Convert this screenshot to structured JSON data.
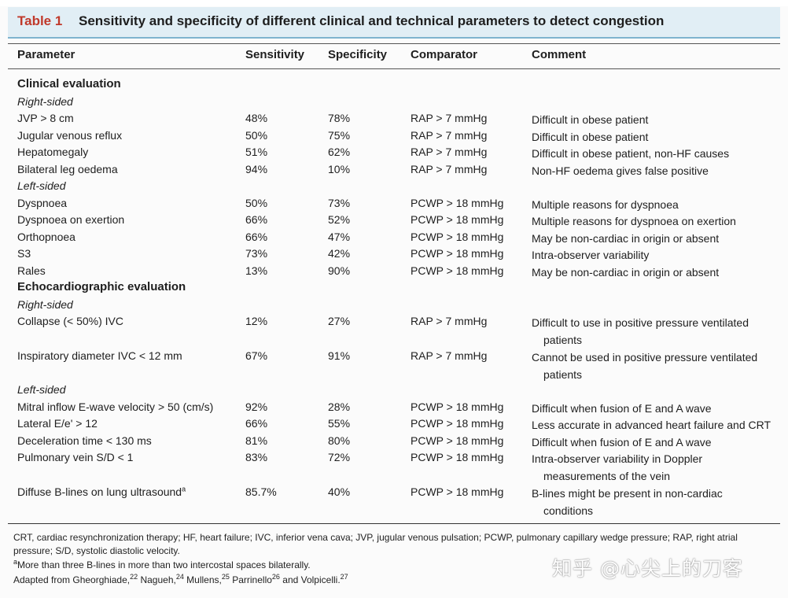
{
  "table": {
    "label": "Table 1",
    "title": "Sensitivity and specificity of different clinical and technical parameters to detect congestion",
    "headers": [
      "Parameter",
      "Sensitivity",
      "Specificity",
      "Comparator",
      "Comment"
    ],
    "sections": [
      {
        "title": "Clinical evaluation",
        "groups": [
          {
            "label": "Right-sided",
            "rows": [
              {
                "parameter": "JVP > 8 cm",
                "sensitivity": "48%",
                "specificity": "78%",
                "comparator": "RAP > 7 mmHg",
                "comment": [
                  "Difficult in obese patient"
                ]
              },
              {
                "parameter": "Jugular venous reflux",
                "sensitivity": "50%",
                "specificity": "75%",
                "comparator": "RAP > 7 mmHg",
                "comment": [
                  "Difficult in obese patient"
                ]
              },
              {
                "parameter": "Hepatomegaly",
                "sensitivity": "51%",
                "specificity": "62%",
                "comparator": "RAP > 7 mmHg",
                "comment": [
                  "Difficult in obese patient, non-HF causes"
                ]
              },
              {
                "parameter": "Bilateral leg oedema",
                "sensitivity": "94%",
                "specificity": "10%",
                "comparator": "RAP > 7 mmHg",
                "comment": [
                  "Non-HF oedema gives false positive"
                ]
              }
            ]
          },
          {
            "label": "Left-sided",
            "rows": [
              {
                "parameter": "Dyspnoea",
                "sensitivity": "50%",
                "specificity": "73%",
                "comparator": "PCWP > 18 mmHg",
                "comment": [
                  "Multiple reasons for dyspnoea"
                ]
              },
              {
                "parameter": "Dyspnoea on exertion",
                "sensitivity": "66%",
                "specificity": "52%",
                "comparator": "PCWP > 18 mmHg",
                "comment": [
                  "Multiple reasons for dyspnoea on exertion"
                ]
              },
              {
                "parameter": "Orthopnoea",
                "sensitivity": "66%",
                "specificity": "47%",
                "comparator": "PCWP > 18 mmHg",
                "comment": [
                  "May be non-cardiac in origin or absent"
                ]
              },
              {
                "parameter": "S3",
                "sensitivity": "73%",
                "specificity": "42%",
                "comparator": "PCWP > 18 mmHg",
                "comment": [
                  "Intra-observer variability"
                ]
              },
              {
                "parameter": "Rales",
                "sensitivity": "13%",
                "specificity": "90%",
                "comparator": "PCWP > 18 mmHg",
                "comment": [
                  "May be non-cardiac in origin or absent"
                ]
              }
            ]
          }
        ]
      },
      {
        "title": "Echocardiographic evaluation",
        "groups": [
          {
            "label": "Right-sided",
            "rows": [
              {
                "parameter": "Collapse (< 50%) IVC",
                "sensitivity": "12%",
                "specificity": "27%",
                "comparator": "RAP > 7 mmHg",
                "comment": [
                  "Difficult to use in positive pressure ventilated",
                  "patients"
                ]
              },
              {
                "parameter": "Inspiratory diameter IVC < 12 mm",
                "sensitivity": "67%",
                "specificity": "91%",
                "comparator": "RAP > 7 mmHg",
                "comment": [
                  "Cannot be used in positive pressure ventilated",
                  "patients"
                ]
              }
            ]
          },
          {
            "label": "Left-sided",
            "rows": [
              {
                "parameter": "Mitral inflow E-wave velocity > 50 (cm/s)",
                "sensitivity": "92%",
                "specificity": "28%",
                "comparator": "PCWP > 18 mmHg",
                "comment": [
                  "Difficult when fusion of E and A wave"
                ]
              },
              {
                "parameter": "Lateral E/e' > 12",
                "sensitivity": "66%",
                "specificity": "55%",
                "comparator": "PCWP > 18 mmHg",
                "comment": [
                  "Less accurate in advanced heart failure and CRT"
                ]
              },
              {
                "parameter": "Deceleration time < 130 ms",
                "sensitivity": "81%",
                "specificity": "80%",
                "comparator": "PCWP > 18 mmHg",
                "comment": [
                  "Difficult when fusion of E and A wave"
                ]
              },
              {
                "parameter": "Pulmonary vein S/D < 1",
                "sensitivity": "83%",
                "specificity": "72%",
                "comparator": "PCWP > 18 mmHg",
                "comment": [
                  "Intra-observer variability in Doppler",
                  "measurements of the vein"
                ]
              },
              {
                "parameter": "Diffuse B-lines on lung ultrasound",
                "parameter_sup": "a",
                "sensitivity": "85.7%",
                "specificity": "40%",
                "comparator": "PCWP > 18 mmHg",
                "comment": [
                  "B-lines might be present in non-cardiac",
                  "conditions"
                ]
              }
            ]
          }
        ]
      }
    ],
    "footnotes": {
      "abbrev_line1": "CRT, cardiac resynchronization therapy; HF, heart failure; IVC, inferior vena cava; JVP, jugular venous pulsation; PCWP, pulmonary capillary wedge pressure; RAP, right atrial",
      "abbrev_line2": "pressure; S/D, systolic diastolic velocity.",
      "note_marker": "a",
      "note_text": "More than three B-lines in more than two intercostal spaces bilaterally.",
      "adapted_prefix": "Adapted from Gheorghiade,",
      "refs": [
        {
          "name": "Gheorghiade",
          "num": "22",
          "sep": " Nagueh,"
        },
        {
          "name": "Nagueh",
          "num": "24",
          "sep": " Mullens,"
        },
        {
          "name": "Mullens",
          "num": "25",
          "sep": " Parrinello"
        },
        {
          "name": "Parrinello",
          "num": "26",
          "sep": " and Volpicelli."
        },
        {
          "name": "Volpicelli",
          "num": "27",
          "sep": ""
        }
      ]
    },
    "watermark": "知乎 @心尖上的刀客"
  }
}
